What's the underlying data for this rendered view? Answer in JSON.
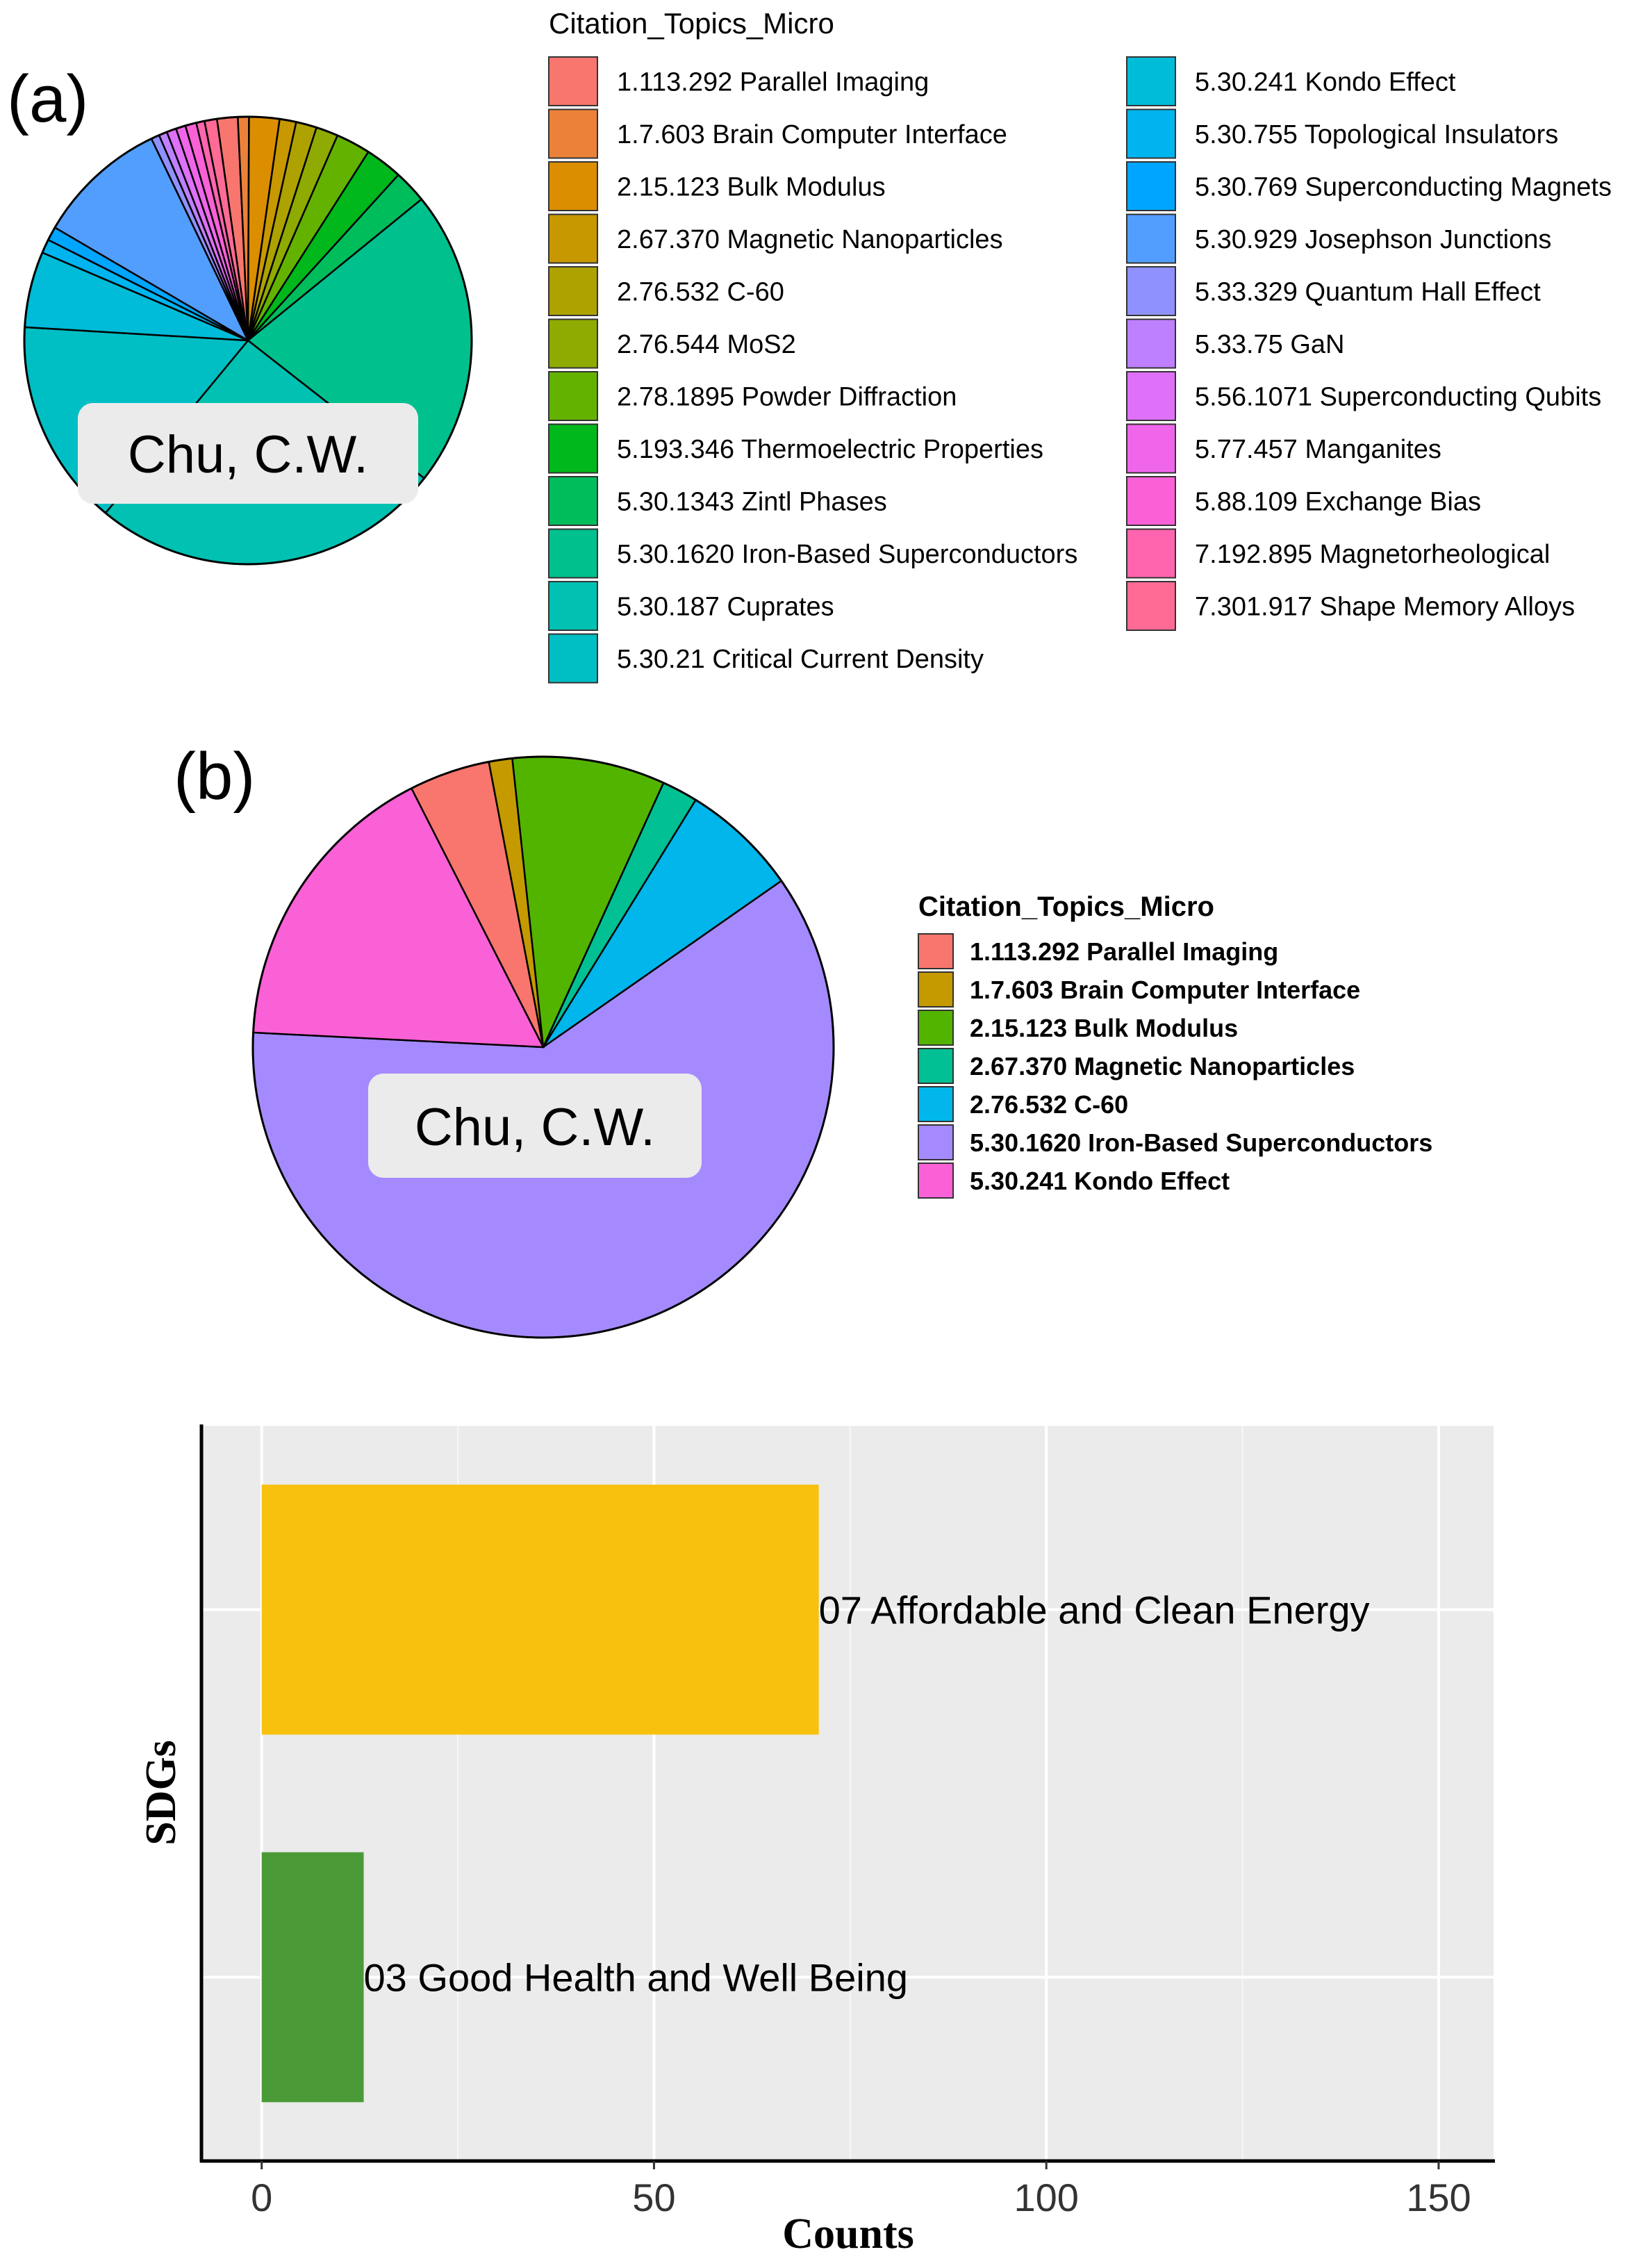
{
  "chart_data": [
    {
      "type": "pie",
      "panel_label": "(a)",
      "center_label": "Chu, C.W.",
      "legend_title": "Citation_Topics_Micro",
      "slices": [
        {
          "label": "1.113.292 Parallel Imaging",
          "value": 1.5,
          "color": "#F8766D"
        },
        {
          "label": "1.7.603 Brain Computer Interface",
          "value": 0.8,
          "color": "#EC8239"
        },
        {
          "label": "2.15.123 Bulk Modulus",
          "value": 2.2,
          "color": "#DB8E00"
        },
        {
          "label": "2.67.370 Magnetic Nanoparticles",
          "value": 1.2,
          "color": "#C79800"
        },
        {
          "label": "2.76.532 C-60",
          "value": 1.5,
          "color": "#AEA200"
        },
        {
          "label": "2.76.544 MoS2",
          "value": 1.6,
          "color": "#8FAA00"
        },
        {
          "label": "2.78.1895 Powder Diffraction",
          "value": 2.5,
          "color": "#64B200"
        },
        {
          "label": "5.193.346 Thermoelectric Properties",
          "value": 2.7,
          "color": "#00B81B"
        },
        {
          "label": "5.30.1343 Zintl Phases",
          "value": 2.4,
          "color": "#00BD5C"
        },
        {
          "label": "5.30.1620 Iron-Based Superconductors",
          "value": 21.5,
          "color": "#00C08E"
        },
        {
          "label": "5.30.187 Cuprates",
          "value": 25.5,
          "color": "#00C1B2"
        },
        {
          "label": "5.30.21 Critical Current Density",
          "value": 15.0,
          "color": "#00BFC4"
        },
        {
          "label": "5.30.241 Kondo Effect",
          "value": 5.5,
          "color": "#00BCD8"
        },
        {
          "label": "5.30.755 Topological Insulators",
          "value": 1.0,
          "color": "#00B4EF"
        },
        {
          "label": "5.30.769 Superconducting Magnets",
          "value": 1.0,
          "color": "#00A5FF"
        },
        {
          "label": "5.30.929 Josephson Junctions",
          "value": 9.5,
          "color": "#529EFF"
        },
        {
          "label": "5.33.329 Quantum Hall Effect",
          "value": 0.6,
          "color": "#8F91FF"
        },
        {
          "label": "5.33.75 GaN",
          "value": 0.6,
          "color": "#BE80FF"
        },
        {
          "label": "5.56.1071 Superconducting Qubits",
          "value": 0.7,
          "color": "#DF70F8"
        },
        {
          "label": "5.77.457 Manganites",
          "value": 0.7,
          "color": "#F066EA"
        },
        {
          "label": "5.88.109 Exchange Bias",
          "value": 0.8,
          "color": "#FB61D7"
        },
        {
          "label": "7.192.895 Magnetorheological",
          "value": 0.6,
          "color": "#FF65AE"
        },
        {
          "label": "7.301.917 Shape Memory Alloys",
          "value": 0.9,
          "color": "#FF6B94"
        }
      ]
    },
    {
      "type": "pie",
      "panel_label": "(b)",
      "center_label": "Chu, C.W.",
      "legend_title": "Citation_Topics_Micro",
      "slices": [
        {
          "label": "1.113.292 Parallel Imaging",
          "value": 4.5,
          "color": "#F8766D"
        },
        {
          "label": "1.7.603 Brain Computer Interface",
          "value": 1.3,
          "color": "#C49A00"
        },
        {
          "label": "2.15.123 Bulk Modulus",
          "value": 8.5,
          "color": "#53B400"
        },
        {
          "label": "2.67.370 Magnetic Nanoparticles",
          "value": 2.0,
          "color": "#00C094"
        },
        {
          "label": "2.76.532 C-60",
          "value": 6.5,
          "color": "#00B6EB"
        },
        {
          "label": "5.30.1620 Iron-Based Superconductors",
          "value": 60.5,
          "color": "#A58AFF"
        },
        {
          "label": "5.30.241 Kondo Effect",
          "value": 16.7,
          "color": "#FB61D7"
        }
      ]
    },
    {
      "type": "bar",
      "orientation": "horizontal",
      "categories": [
        "07 Affordable and Clean Energy",
        "03 Good Health and Well Being"
      ],
      "values": [
        71,
        13
      ],
      "colors": [
        "#F8C10E",
        "#4A9A37"
      ],
      "xlabel": "Counts",
      "ylabel": "SDGs",
      "xlim": [
        -7.5,
        157
      ],
      "xticks": [
        0,
        50,
        100,
        150
      ],
      "grid": true
    }
  ]
}
